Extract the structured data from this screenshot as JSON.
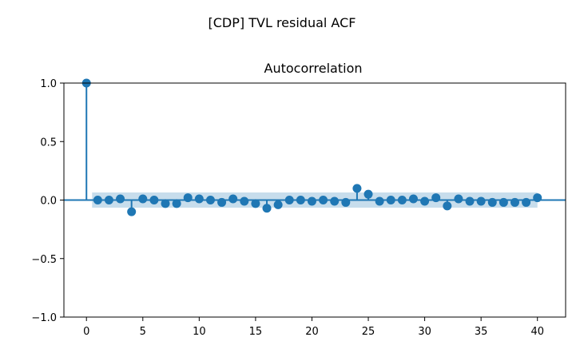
{
  "figure": {
    "suptitle": "[CDP] TVL residual ACF"
  },
  "chart_data": {
    "type": "scatter",
    "subtype": "stem",
    "title": "Autocorrelation",
    "xlabel": "",
    "ylabel": "",
    "xlim": [
      -2,
      42.5
    ],
    "ylim": [
      -1.0,
      1.0
    ],
    "x_ticks": [
      0,
      5,
      10,
      15,
      20,
      25,
      30,
      35,
      40
    ],
    "x_tick_labels": [
      "0",
      "5",
      "10",
      "15",
      "20",
      "25",
      "30",
      "35",
      "40"
    ],
    "y_ticks": [
      1.0,
      0.5,
      0.0,
      -0.5,
      -1.0
    ],
    "y_tick_labels": [
      "1.0",
      "0.5",
      "0.0",
      "−0.5",
      "−1.0"
    ],
    "grid": false,
    "legend": "none",
    "series": [
      {
        "x": [
          0,
          1,
          2,
          3,
          4,
          5,
          6,
          7,
          8,
          9,
          10,
          11,
          12,
          13,
          14,
          15,
          16,
          17,
          18,
          19,
          20,
          21,
          22,
          23,
          24,
          25,
          26,
          27,
          28,
          29,
          30,
          31,
          32,
          33,
          34,
          35,
          36,
          37,
          38,
          39,
          40
        ],
        "values": [
          1.0,
          0.0,
          0.0,
          0.01,
          -0.1,
          0.01,
          0.0,
          -0.03,
          -0.03,
          0.02,
          0.01,
          0.0,
          -0.02,
          0.01,
          -0.01,
          -0.03,
          -0.07,
          -0.04,
          0.0,
          0.0,
          -0.01,
          0.0,
          -0.01,
          -0.02,
          0.1,
          0.05,
          -0.01,
          0.0,
          0.0,
          0.01,
          -0.01,
          0.02,
          -0.05,
          0.01,
          -0.01,
          -0.01,
          -0.02,
          -0.02,
          -0.02,
          -0.02,
          0.02
        ]
      }
    ],
    "confidence_band": {
      "x_start": 0.5,
      "x_end": 40,
      "upper": 0.065,
      "lower": -0.065
    },
    "colors": {
      "stem": "#1f77b4",
      "band": "#1f77b4",
      "band_opacity": 0.25,
      "zero_line": "#1f77b4"
    }
  }
}
